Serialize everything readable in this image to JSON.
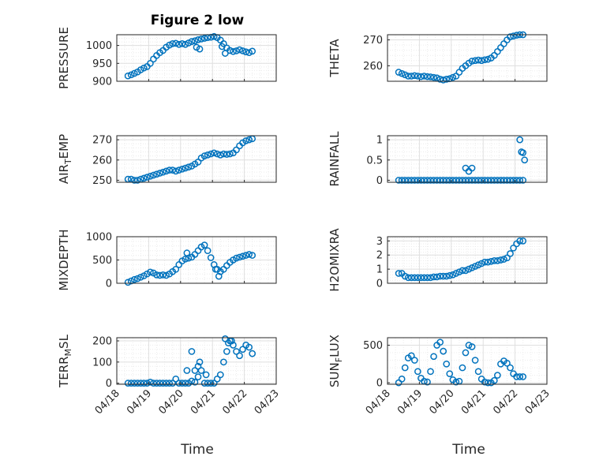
{
  "figure": {
    "title": "Figure 2 low",
    "xlabel": "Time",
    "x_tick_labels": [
      "04/18",
      "04/19",
      "04/20",
      "04/21",
      "04/22",
      "04/23"
    ]
  },
  "colors": {
    "marker": "#0072BD",
    "axis": "#262626",
    "grid": "#dfdfdf",
    "minor_grid": "#ececec"
  },
  "chart_data": [
    {
      "type": "scatter",
      "name": "PRESSURE",
      "ylabel": "PRESSURE",
      "xlim": [
        0,
        5
      ],
      "ylim": [
        900,
        1030
      ],
      "yticks": [
        900,
        950,
        1000
      ],
      "x": [
        0.35,
        0.45,
        0.55,
        0.65,
        0.75,
        0.85,
        0.95,
        1.05,
        1.15,
        1.25,
        1.35,
        1.45,
        1.55,
        1.65,
        1.75,
        1.85,
        1.95,
        2.05,
        2.15,
        2.25,
        2.35,
        2.45,
        2.55,
        2.65,
        2.75,
        2.85,
        2.95,
        3.05,
        3.15,
        3.25,
        3.35,
        3.45,
        3.55,
        3.65,
        3.75,
        3.85,
        3.95,
        4.05,
        4.15,
        4.25,
        2.5,
        2.6,
        3.3,
        3.4
      ],
      "y": [
        915,
        918,
        922,
        926,
        932,
        937,
        941,
        950,
        962,
        972,
        980,
        986,
        995,
        1001,
        1005,
        1006,
        1003,
        1005,
        1003,
        1007,
        1011,
        1013,
        1016,
        1018,
        1020,
        1022,
        1023,
        1025,
        1022,
        1015,
        1005,
        993,
        986,
        983,
        985,
        988,
        985,
        982,
        980,
        984,
        995,
        990,
        997,
        978
      ]
    },
    {
      "type": "scatter",
      "name": "THETA",
      "ylabel": "THETA",
      "xlim": [
        0,
        5
      ],
      "ylim": [
        254,
        272
      ],
      "yticks": [
        260,
        270
      ],
      "x": [
        0.35,
        0.45,
        0.55,
        0.65,
        0.75,
        0.85,
        0.95,
        1.05,
        1.15,
        1.25,
        1.35,
        1.45,
        1.55,
        1.65,
        1.75,
        1.85,
        1.95,
        2.05,
        2.15,
        2.25,
        2.35,
        2.45,
        2.55,
        2.65,
        2.75,
        2.85,
        2.95,
        3.05,
        3.15,
        3.25,
        3.35,
        3.45,
        3.55,
        3.65,
        3.75,
        3.85,
        3.95,
        4.05,
        4.15,
        4.25
      ],
      "y": [
        257.5,
        257,
        256.5,
        256,
        256,
        256.2,
        256,
        255.8,
        256,
        255.8,
        255.7,
        255.5,
        255.3,
        254.8,
        254.5,
        254.8,
        255,
        255.5,
        256,
        257.5,
        259,
        260,
        261,
        261.8,
        262,
        262.2,
        262,
        262.3,
        262.5,
        263,
        264,
        265.5,
        267,
        268.5,
        270,
        271.2,
        271.5,
        271.8,
        272,
        272
      ],
      "ylim_note": ""
    },
    {
      "type": "scatter",
      "name": "AIR_TEMP",
      "ylabel": "AIR",
      "ylabel_sub": "T",
      "ylabel_rest": "EMP",
      "xlim": [
        0,
        5
      ],
      "ylim": [
        249,
        272
      ],
      "yticks": [
        250,
        260,
        270
      ],
      "x": [
        0.35,
        0.45,
        0.55,
        0.65,
        0.75,
        0.85,
        0.95,
        1.05,
        1.15,
        1.25,
        1.35,
        1.45,
        1.55,
        1.65,
        1.75,
        1.85,
        1.95,
        2.05,
        2.15,
        2.25,
        2.35,
        2.45,
        2.55,
        2.65,
        2.75,
        2.85,
        2.95,
        3.05,
        3.15,
        3.25,
        3.35,
        3.45,
        3.55,
        3.65,
        3.75,
        3.85,
        3.95,
        4.05,
        4.15,
        4.25
      ],
      "y": [
        250.5,
        250.5,
        250,
        250,
        250.5,
        251,
        251.5,
        252,
        252.5,
        253,
        253.5,
        254,
        254.5,
        255,
        255,
        254.5,
        255,
        255.5,
        256,
        256.5,
        257,
        258,
        259,
        261,
        262,
        262.5,
        263,
        263.5,
        263,
        262.5,
        263,
        262.8,
        263,
        263.5,
        265,
        267,
        268.5,
        269.5,
        270,
        270.5
      ]
    },
    {
      "type": "scatter",
      "name": "RAINFALL",
      "ylabel": "RAINFALL",
      "xlim": [
        0,
        5
      ],
      "ylim": [
        -0.05,
        1.1
      ],
      "yticks": [
        0,
        0.5,
        1
      ],
      "ytick_labels": [
        "0",
        "0.5",
        "1"
      ],
      "x": [
        0.35,
        0.45,
        0.55,
        0.65,
        0.75,
        0.85,
        0.95,
        1.05,
        1.15,
        1.25,
        1.35,
        1.45,
        1.55,
        1.65,
        1.75,
        1.85,
        1.95,
        2.05,
        2.15,
        2.25,
        2.35,
        2.45,
        2.55,
        2.65,
        2.75,
        2.85,
        2.95,
        3.05,
        3.15,
        3.25,
        3.35,
        3.45,
        3.55,
        3.65,
        3.75,
        3.85,
        3.95,
        4.05,
        4.15,
        4.25,
        2.45,
        2.55,
        2.65,
        4.15,
        4.2,
        4.25,
        4.3
      ],
      "y": [
        0,
        0,
        0,
        0,
        0,
        0,
        0,
        0,
        0,
        0,
        0,
        0,
        0,
        0,
        0,
        0,
        0,
        0,
        0,
        0,
        0,
        0,
        0,
        0,
        0,
        0,
        0,
        0,
        0,
        0,
        0,
        0,
        0,
        0,
        0,
        0,
        0,
        0,
        0,
        0,
        0.3,
        0.22,
        0.3,
        1.0,
        0.7,
        0.68,
        0.5
      ]
    },
    {
      "type": "scatter",
      "name": "MIXDEPTH",
      "ylabel": "MIXDEPTH",
      "xlim": [
        0,
        5
      ],
      "ylim": [
        0,
        1000
      ],
      "yticks": [
        0,
        500,
        1000
      ],
      "x": [
        0.35,
        0.45,
        0.55,
        0.65,
        0.75,
        0.85,
        0.95,
        1.05,
        1.15,
        1.25,
        1.35,
        1.45,
        1.55,
        1.65,
        1.75,
        1.85,
        1.95,
        2.05,
        2.15,
        2.25,
        2.35,
        2.45,
        2.55,
        2.65,
        2.75,
        2.85,
        2.95,
        3.05,
        3.15,
        3.25,
        3.35,
        3.45,
        3.55,
        3.65,
        3.75,
        3.85,
        3.95,
        4.05,
        4.15,
        4.25,
        2.2,
        3.1,
        3.2
      ],
      "y": [
        20,
        50,
        80,
        100,
        130,
        160,
        200,
        240,
        220,
        180,
        170,
        180,
        170,
        200,
        250,
        300,
        400,
        480,
        520,
        540,
        560,
        620,
        700,
        780,
        820,
        700,
        550,
        400,
        300,
        250,
        300,
        380,
        450,
        500,
        540,
        560,
        580,
        600,
        620,
        600,
        650,
        300,
        150
      ]
    },
    {
      "type": "scatter",
      "name": "H2OMIXRA",
      "ylabel": "H2OMIXRA",
      "xlim": [
        0,
        5
      ],
      "ylim": [
        0,
        3.3
      ],
      "yticks": [
        0,
        1,
        2,
        3
      ],
      "x": [
        0.35,
        0.45,
        0.55,
        0.65,
        0.75,
        0.85,
        0.95,
        1.05,
        1.15,
        1.25,
        1.35,
        1.45,
        1.55,
        1.65,
        1.75,
        1.85,
        1.95,
        2.05,
        2.15,
        2.25,
        2.35,
        2.45,
        2.55,
        2.65,
        2.75,
        2.85,
        2.95,
        3.05,
        3.15,
        3.25,
        3.35,
        3.45,
        3.55,
        3.65,
        3.75,
        3.85,
        3.95,
        4.05,
        4.15,
        4.25
      ],
      "y": [
        0.7,
        0.7,
        0.5,
        0.4,
        0.4,
        0.4,
        0.4,
        0.4,
        0.4,
        0.4,
        0.4,
        0.45,
        0.45,
        0.5,
        0.5,
        0.5,
        0.55,
        0.6,
        0.7,
        0.8,
        0.9,
        0.9,
        1.0,
        1.1,
        1.2,
        1.3,
        1.4,
        1.5,
        1.5,
        1.55,
        1.6,
        1.6,
        1.65,
        1.7,
        1.8,
        2.1,
        2.5,
        2.8,
        3.0,
        3.0
      ]
    },
    {
      "type": "scatter",
      "name": "TERR_MSL",
      "ylabel": "TERR",
      "ylabel_sub": "M",
      "ylabel_rest": "SL",
      "xlim": [
        0,
        5
      ],
      "ylim": [
        -5,
        215
      ],
      "yticks": [
        0,
        100,
        200
      ],
      "x": [
        0.35,
        0.45,
        0.55,
        0.65,
        0.75,
        0.85,
        0.95,
        1.05,
        1.15,
        1.25,
        1.35,
        1.45,
        1.55,
        1.65,
        1.75,
        1.85,
        1.95,
        2.05,
        2.15,
        2.25,
        2.35,
        2.45,
        2.55,
        2.65,
        2.75,
        2.85,
        2.95,
        3.05,
        3.15,
        3.25,
        3.35,
        3.45,
        3.55,
        3.65,
        3.75,
        3.85,
        3.95,
        4.05,
        4.15,
        4.25,
        2.2,
        2.35,
        2.45,
        2.55,
        2.6,
        2.8,
        3.4,
        3.5,
        3.6
      ],
      "y": [
        0,
        0,
        0,
        0,
        0,
        0,
        0,
        5,
        0,
        0,
        0,
        0,
        0,
        0,
        0,
        20,
        0,
        0,
        0,
        0,
        10,
        5,
        30,
        60,
        0,
        0,
        0,
        0,
        20,
        40,
        100,
        150,
        200,
        180,
        150,
        130,
        160,
        180,
        170,
        140,
        60,
        150,
        60,
        80,
        100,
        40,
        210,
        190,
        200
      ]
    },
    {
      "type": "scatter",
      "name": "SUN_FLUX",
      "ylabel": "SUN",
      "ylabel_sub": "F",
      "ylabel_rest": "LUX",
      "xlim": [
        0,
        5
      ],
      "ylim": [
        -20,
        600
      ],
      "yticks": [
        0,
        500
      ],
      "x": [
        0.35,
        0.45,
        0.55,
        0.65,
        0.75,
        0.85,
        0.95,
        1.05,
        1.15,
        1.25,
        1.35,
        1.45,
        1.55,
        1.65,
        1.75,
        1.85,
        1.95,
        2.05,
        2.15,
        2.25,
        2.35,
        2.45,
        2.55,
        2.65,
        2.75,
        2.85,
        2.95,
        3.05,
        3.15,
        3.25,
        3.35,
        3.45,
        3.55,
        3.65,
        3.75,
        3.85,
        3.95,
        4.05,
        4.15,
        4.25
      ],
      "y": [
        0,
        50,
        200,
        330,
        360,
        300,
        150,
        60,
        20,
        10,
        150,
        350,
        500,
        540,
        420,
        250,
        120,
        40,
        10,
        20,
        200,
        400,
        500,
        480,
        300,
        150,
        50,
        10,
        0,
        0,
        30,
        100,
        250,
        290,
        260,
        200,
        120,
        80,
        80,
        80
      ]
    }
  ]
}
